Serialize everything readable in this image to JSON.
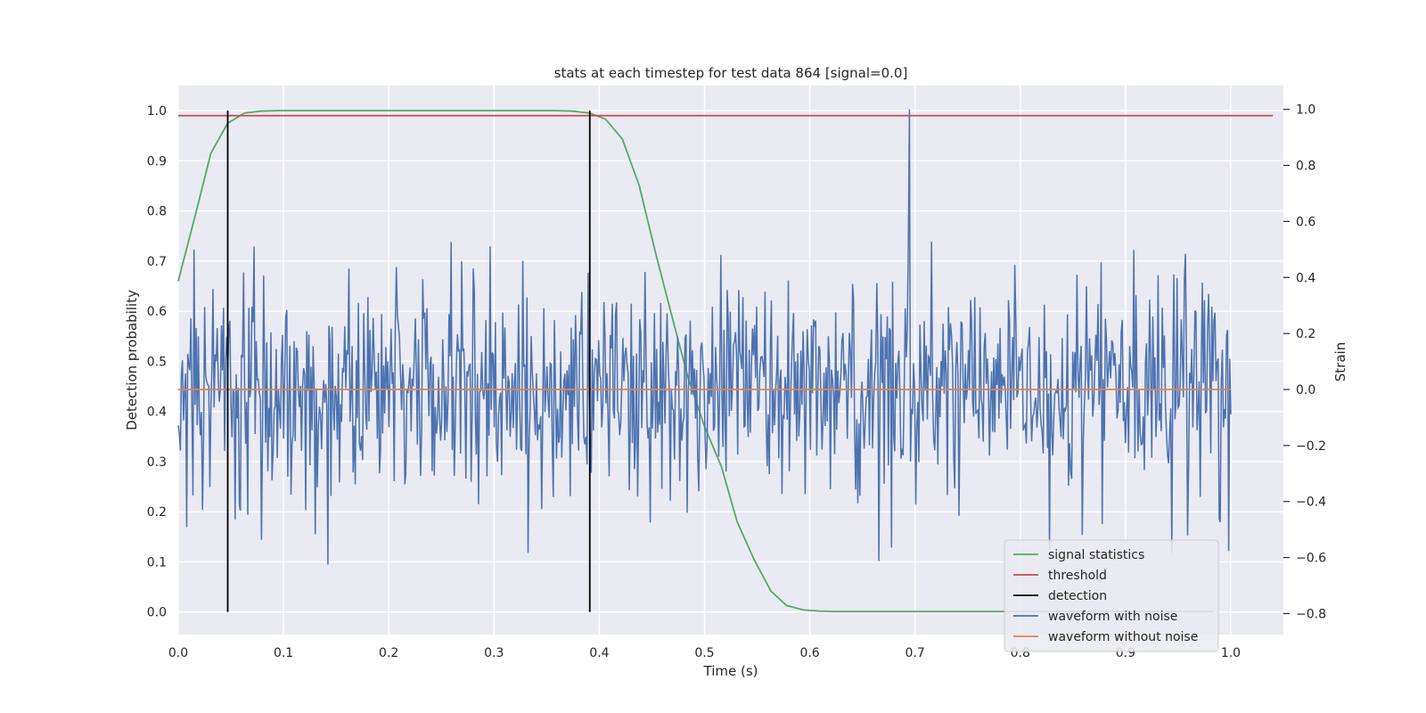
{
  "chart_data": {
    "type": "line",
    "title": "stats at each timestep for test data 864 [signal=0.0]",
    "xlabel": "Time (s)",
    "ylabel_left": "Detection probability",
    "ylabel_right": "Strain",
    "xlim": [
      0.0,
      1.05
    ],
    "ylim_left": [
      -0.045,
      1.05
    ],
    "ylim_right": [
      -0.875,
      1.085
    ],
    "x_ticks": [
      "0.0",
      "0.1",
      "0.2",
      "0.3",
      "0.4",
      "0.5",
      "0.6",
      "0.7",
      "0.8",
      "0.9",
      "1.0"
    ],
    "y_ticks_left": [
      "0.0",
      "0.1",
      "0.2",
      "0.3",
      "0.4",
      "0.5",
      "0.6",
      "0.7",
      "0.8",
      "0.9",
      "1.0"
    ],
    "y_ticks_right": [
      "−0.8",
      "−0.6",
      "−0.4",
      "−0.2",
      "0.0",
      "0.2",
      "0.4",
      "0.6",
      "0.8",
      "1.0"
    ],
    "grid": true,
    "legend_position": "lower-right",
    "colors": {
      "signal_statistics": "#55a868",
      "threshold": "#c44e52",
      "detection": "#000000",
      "waveform_with_noise": "#4c72b0",
      "waveform_without_noise": "#dd8452",
      "background": "#eaeaf2"
    },
    "legend": [
      "signal statistics",
      "threshold",
      "detection",
      "waveform with noise",
      "waveform without noise"
    ],
    "series": [
      {
        "name": "signal statistics",
        "axis": "left",
        "x": [
          0.0,
          0.016,
          0.031,
          0.047,
          0.063,
          0.078,
          0.094,
          0.109,
          0.125,
          0.141,
          0.156,
          0.172,
          0.188,
          0.203,
          0.219,
          0.234,
          0.25,
          0.266,
          0.281,
          0.297,
          0.313,
          0.328,
          0.344,
          0.359,
          0.375,
          0.391,
          0.406,
          0.422,
          0.438,
          0.453,
          0.469,
          0.484,
          0.5,
          0.516,
          0.531,
          0.547,
          0.563,
          0.578,
          0.594,
          0.609,
          0.625,
          0.641,
          0.656,
          0.672,
          0.688,
          0.703,
          0.719,
          0.734,
          0.75,
          0.766,
          0.781,
          0.797,
          0.813,
          0.828,
          0.844,
          0.859,
          0.875,
          0.891,
          0.906,
          0.922,
          0.938,
          0.953,
          0.969,
          0.984
        ],
        "values": [
          0.66,
          0.79,
          0.915,
          0.975,
          0.995,
          0.999,
          1.0,
          1.0,
          1.0,
          1.0,
          1.0,
          1.0,
          1.0,
          1.0,
          1.0,
          1.0,
          1.0,
          1.0,
          1.0,
          1.0,
          1.0,
          1.0,
          1.0,
          1.0,
          0.999,
          0.995,
          0.983,
          0.943,
          0.85,
          0.72,
          0.59,
          0.47,
          0.37,
          0.29,
          0.18,
          0.105,
          0.042,
          0.013,
          0.004,
          0.002,
          0.001,
          0.001,
          0.001,
          0.001,
          0.001,
          0.001,
          0.001,
          0.001,
          0.001,
          0.001,
          0.001,
          0.001,
          0.001,
          0.001,
          0.001,
          0.001,
          0.001,
          0.001,
          0.001,
          0.001,
          0.001,
          0.001,
          0.001,
          0.001
        ]
      },
      {
        "name": "threshold",
        "axis": "left",
        "x": [
          0.0,
          1.04
        ],
        "values": [
          0.99,
          0.99
        ]
      },
      {
        "name": "detection",
        "axis": "left",
        "x_positions": [
          0.047,
          0.391
        ],
        "y_range": [
          0.0,
          1.0
        ]
      },
      {
        "name": "waveform with noise",
        "axis": "right",
        "x_range": [
          0.0,
          1.0
        ],
        "n_points": 1000,
        "std": 0.2,
        "peak": {
          "x": 0.695,
          "value": 1.0
        }
      },
      {
        "name": "waveform without noise",
        "axis": "right",
        "x": [
          0.0,
          1.0
        ],
        "values": [
          0.0,
          0.0
        ]
      }
    ]
  }
}
